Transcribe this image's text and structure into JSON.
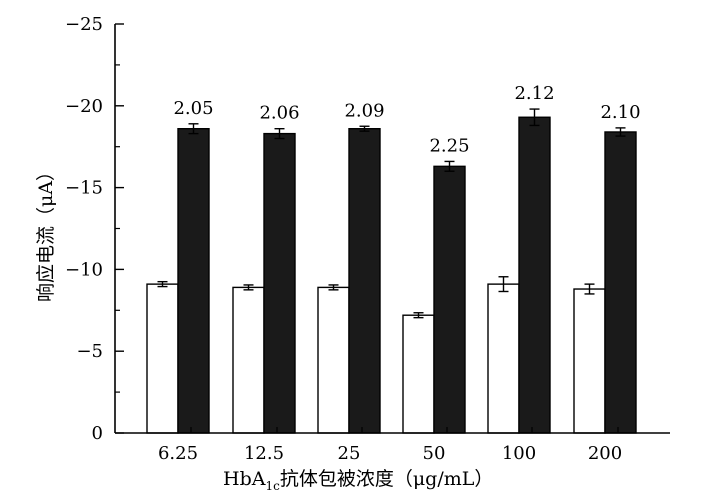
{
  "chart_data": {
    "type": "bar",
    "xlabel_main": "HbA",
    "xlabel_sub": "1c",
    "xlabel_rest": "抗体包被浓度（μg/mL）",
    "ylabel": "响应电流（μA）",
    "categories": [
      "6.25",
      "12.5",
      "25",
      "50",
      "100",
      "200"
    ],
    "ylim": [
      0,
      -25
    ],
    "yticks": [
      0,
      -5,
      -10,
      -15,
      -20,
      -25
    ],
    "ytick_labels": [
      "0",
      "−5",
      "−10",
      "−15",
      "−20",
      "−25"
    ],
    "series": [
      {
        "fill": "#ffffff",
        "values": [
          -9.1,
          -8.9,
          -8.9,
          -7.2,
          -9.1,
          -8.8
        ],
        "errors": [
          0.15,
          0.15,
          0.15,
          0.15,
          0.45,
          0.3
        ]
      },
      {
        "fill": "#1a1a1a",
        "values": [
          -18.6,
          -18.3,
          -18.6,
          -16.3,
          -19.3,
          -18.4
        ],
        "errors": [
          0.3,
          0.3,
          0.15,
          0.3,
          0.5,
          0.25
        ]
      }
    ],
    "data_labels": [
      "2.05",
      "2.06",
      "2.09",
      "2.25",
      "2.12",
      "2.10"
    ],
    "grid": false,
    "legend": "none"
  }
}
